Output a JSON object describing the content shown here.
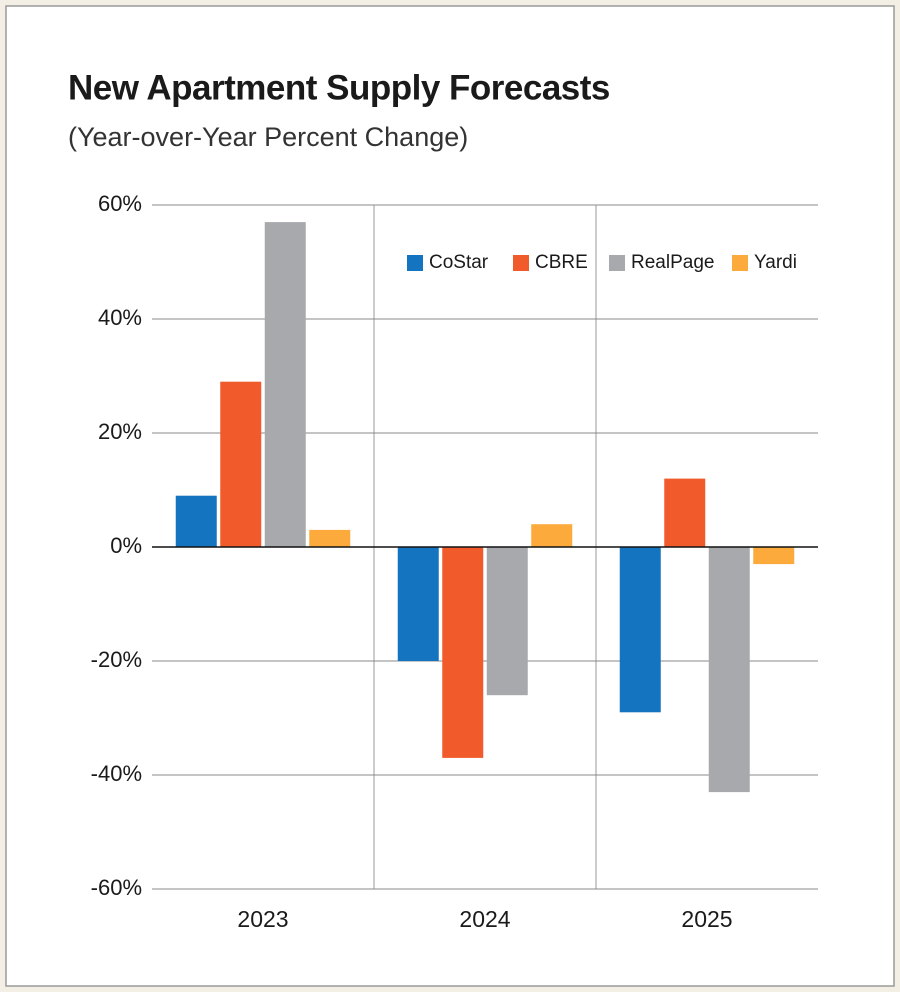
{
  "chart_data": {
    "type": "bar",
    "title": "New Apartment Supply Forecasts",
    "subtitle": "(Year-over-Year Percent Change)",
    "categories": [
      "2023",
      "2024",
      "2025"
    ],
    "series": [
      {
        "name": "CoStar",
        "color": "#1474bf",
        "values": [
          9,
          -20,
          -29
        ]
      },
      {
        "name": "CBRE",
        "color": "#f15a2b",
        "values": [
          29,
          -37,
          12
        ]
      },
      {
        "name": "RealPage",
        "color": "#a7a9ac",
        "values": [
          57,
          -26,
          -43
        ]
      },
      {
        "name": "Yardi",
        "color": "#fbaa3b",
        "values": [
          3,
          4,
          -3
        ]
      }
    ],
    "ylim": [
      -60,
      60
    ],
    "yticks": [
      {
        "value": -60,
        "label": "-60%"
      },
      {
        "value": -40,
        "label": "-40%"
      },
      {
        "value": -20,
        "label": "-20%"
      },
      {
        "value": 0,
        "label": "0%"
      },
      {
        "value": 20,
        "label": "20%"
      },
      {
        "value": 40,
        "label": "40%"
      },
      {
        "value": 60,
        "label": "60%"
      }
    ],
    "grid": true,
    "legend": "top-right"
  }
}
